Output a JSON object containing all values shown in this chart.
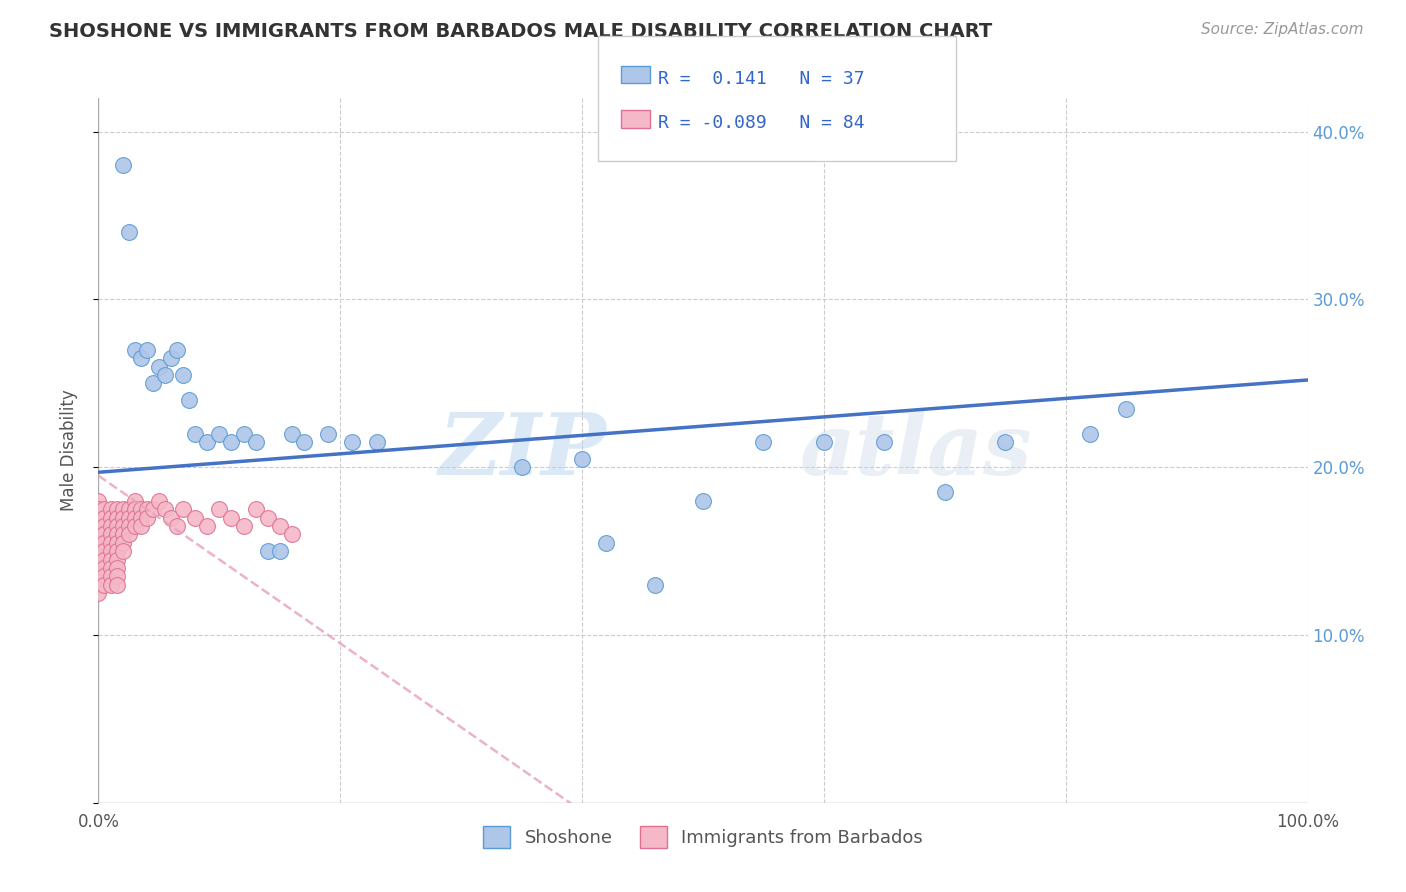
{
  "title": "SHOSHONE VS IMMIGRANTS FROM BARBADOS MALE DISABILITY CORRELATION CHART",
  "source_text": "Source: ZipAtlas.com",
  "ylabel": "Male Disability",
  "xlim": [
    0,
    1.0
  ],
  "ylim": [
    0,
    0.42
  ],
  "legend_entries": [
    {
      "label": "Shoshone",
      "color": "#aec6e8",
      "R": "0.141",
      "N": "37"
    },
    {
      "label": "Immigrants from Barbados",
      "color": "#f4b8c8",
      "R": "-0.089",
      "N": "84"
    }
  ],
  "shoshone_color": "#aec6e8",
  "barbados_color": "#f4b8c8",
  "shoshone_edge": "#5b9bd5",
  "barbados_edge": "#e07090",
  "trend_shoshone_color": "#4472c4",
  "trend_barbados_color": "#e8a0b8",
  "watermark": "ZIPAtlas",
  "shoshone_x": [
    0.02,
    0.025,
    0.03,
    0.035,
    0.04,
    0.045,
    0.05,
    0.055,
    0.06,
    0.065,
    0.07,
    0.075,
    0.08,
    0.09,
    0.1,
    0.11,
    0.12,
    0.13,
    0.14,
    0.15,
    0.16,
    0.17,
    0.19,
    0.21,
    0.23,
    0.35,
    0.4,
    0.42,
    0.46,
    0.5,
    0.55,
    0.6,
    0.65,
    0.7,
    0.75,
    0.82,
    0.85
  ],
  "shoshone_y": [
    0.38,
    0.34,
    0.27,
    0.265,
    0.27,
    0.25,
    0.26,
    0.255,
    0.265,
    0.27,
    0.255,
    0.24,
    0.22,
    0.215,
    0.22,
    0.215,
    0.22,
    0.215,
    0.15,
    0.15,
    0.22,
    0.215,
    0.22,
    0.215,
    0.215,
    0.2,
    0.205,
    0.155,
    0.13,
    0.18,
    0.215,
    0.215,
    0.215,
    0.185,
    0.215,
    0.22,
    0.235
  ],
  "barbados_x": [
    0.0,
    0.0,
    0.0,
    0.0,
    0.0,
    0.0,
    0.0,
    0.0,
    0.0,
    0.0,
    0.0,
    0.0,
    0.0,
    0.0,
    0.0,
    0.0,
    0.0,
    0.0,
    0.0,
    0.0,
    0.005,
    0.005,
    0.005,
    0.005,
    0.005,
    0.005,
    0.005,
    0.005,
    0.005,
    0.005,
    0.01,
    0.01,
    0.01,
    0.01,
    0.01,
    0.01,
    0.01,
    0.01,
    0.01,
    0.01,
    0.015,
    0.015,
    0.015,
    0.015,
    0.015,
    0.015,
    0.015,
    0.015,
    0.015,
    0.015,
    0.02,
    0.02,
    0.02,
    0.02,
    0.02,
    0.02,
    0.025,
    0.025,
    0.025,
    0.025,
    0.03,
    0.03,
    0.03,
    0.03,
    0.035,
    0.035,
    0.035,
    0.04,
    0.04,
    0.045,
    0.05,
    0.055,
    0.06,
    0.065,
    0.07,
    0.08,
    0.09,
    0.1,
    0.11,
    0.12,
    0.13,
    0.14,
    0.15,
    0.16
  ],
  "barbados_y": [
    0.18,
    0.175,
    0.17,
    0.165,
    0.16,
    0.155,
    0.15,
    0.145,
    0.14,
    0.135,
    0.17,
    0.165,
    0.16,
    0.155,
    0.15,
    0.145,
    0.14,
    0.135,
    0.13,
    0.125,
    0.175,
    0.17,
    0.165,
    0.16,
    0.155,
    0.15,
    0.145,
    0.14,
    0.135,
    0.13,
    0.175,
    0.17,
    0.165,
    0.16,
    0.155,
    0.15,
    0.145,
    0.14,
    0.135,
    0.13,
    0.175,
    0.17,
    0.165,
    0.16,
    0.155,
    0.15,
    0.145,
    0.14,
    0.135,
    0.13,
    0.175,
    0.17,
    0.165,
    0.16,
    0.155,
    0.15,
    0.175,
    0.17,
    0.165,
    0.16,
    0.18,
    0.175,
    0.17,
    0.165,
    0.175,
    0.17,
    0.165,
    0.175,
    0.17,
    0.175,
    0.18,
    0.175,
    0.17,
    0.165,
    0.175,
    0.17,
    0.165,
    0.175,
    0.17,
    0.165,
    0.175,
    0.17,
    0.165,
    0.16
  ]
}
